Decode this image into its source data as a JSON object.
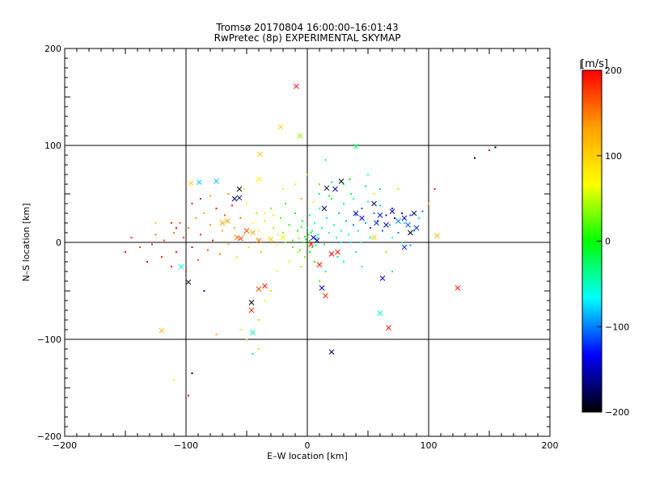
{
  "chart_data": {
    "type": "scatter",
    "title": "Tromsø 20170804 16:00:00–16:01:43",
    "subtitle": "RwPretec (8p) EXPERIMENTAL SKYMAP",
    "xlabel": "E–W location [km]",
    "ylabel": "N–S location [km]",
    "xlim": [
      -200,
      200
    ],
    "ylim": [
      -200,
      200
    ],
    "xticks": [
      -200,
      -100,
      0,
      100,
      200
    ],
    "yticks": [
      -200,
      -100,
      0,
      100,
      200
    ],
    "xtick_labels": [
      "−200",
      "−100",
      "0",
      "100",
      "200"
    ],
    "ytick_labels": [
      "−200",
      "−100",
      "0",
      "100",
      "200"
    ],
    "grid": true,
    "color_scale": "rainbow",
    "colorbar": {
      "label": "[m/s]",
      "range": [
        -200,
        200
      ],
      "ticks": [
        200,
        100,
        0,
        -100,
        -200
      ],
      "tick_labels": [
        "200",
        "100",
        "0",
        "−100",
        "−200"
      ],
      "stops": [
        "#ff0000",
        "#ffa000",
        "#ffff00",
        "#00ff00",
        "#00ffff",
        "#0000ff",
        "#000000"
      ]
    },
    "markers": [
      {
        "x": -9,
        "y": 161,
        "v": 200
      },
      {
        "x": -22,
        "y": 119,
        "v": 100
      },
      {
        "x": -6,
        "y": 110,
        "v": 40
      },
      {
        "x": -39,
        "y": 91,
        "v": 110
      },
      {
        "x": -96,
        "y": 61,
        "v": 100
      },
      {
        "x": -40,
        "y": 65,
        "v": 70
      },
      {
        "x": -89,
        "y": 62,
        "v": -80
      },
      {
        "x": -75,
        "y": 63,
        "v": -80
      },
      {
        "x": -60,
        "y": 45,
        "v": -170
      },
      {
        "x": -56,
        "y": 46,
        "v": -170
      },
      {
        "x": -56,
        "y": 55,
        "v": -200
      },
      {
        "x": -70,
        "y": 20,
        "v": 130
      },
      {
        "x": -66,
        "y": 22,
        "v": 130
      },
      {
        "x": -45,
        "y": 10,
        "v": 120
      },
      {
        "x": -40,
        "y": 2,
        "v": 150
      },
      {
        "x": -58,
        "y": 5,
        "v": 150
      },
      {
        "x": -55,
        "y": 4,
        "v": 180
      },
      {
        "x": -50,
        "y": 12,
        "v": 170
      },
      {
        "x": -30,
        "y": 3,
        "v": 100
      },
      {
        "x": -20,
        "y": 5,
        "v": 60
      },
      {
        "x": -104,
        "y": -25,
        "v": -60
      },
      {
        "x": -98,
        "y": -41,
        "v": -200
      },
      {
        "x": -46,
        "y": -62,
        "v": -200
      },
      {
        "x": -46,
        "y": -70,
        "v": 180
      },
      {
        "x": -40,
        "y": -48,
        "v": 170
      },
      {
        "x": -35,
        "y": -45,
        "v": 190
      },
      {
        "x": -45,
        "y": -93,
        "v": -50
      },
      {
        "x": -120,
        "y": -91,
        "v": 120
      },
      {
        "x": 10,
        "y": -23,
        "v": 190
      },
      {
        "x": 12,
        "y": -47,
        "v": -160
      },
      {
        "x": 15,
        "y": -55,
        "v": 180
      },
      {
        "x": 20,
        "y": -113,
        "v": -170
      },
      {
        "x": 20,
        "y": -12,
        "v": 200
      },
      {
        "x": 25,
        "y": -10,
        "v": 190
      },
      {
        "x": 3,
        "y": -2,
        "v": 200
      },
      {
        "x": 5,
        "y": 5,
        "v": -150
      },
      {
        "x": 8,
        "y": 2,
        "v": -160
      },
      {
        "x": 14,
        "y": 35,
        "v": -170
      },
      {
        "x": 16,
        "y": 56,
        "v": -190
      },
      {
        "x": 28,
        "y": 63,
        "v": -200
      },
      {
        "x": 23,
        "y": 55,
        "v": -160
      },
      {
        "x": 40,
        "y": 99,
        "v": -30
      },
      {
        "x": 40,
        "y": 30,
        "v": -150
      },
      {
        "x": 45,
        "y": 25,
        "v": -140
      },
      {
        "x": 55,
        "y": 40,
        "v": -170
      },
      {
        "x": 57,
        "y": 20,
        "v": -120
      },
      {
        "x": 60,
        "y": 28,
        "v": -130
      },
      {
        "x": 65,
        "y": 18,
        "v": -150
      },
      {
        "x": 70,
        "y": 32,
        "v": -160
      },
      {
        "x": 75,
        "y": 22,
        "v": -100
      },
      {
        "x": 80,
        "y": 25,
        "v": -140
      },
      {
        "x": 83,
        "y": 18,
        "v": -110
      },
      {
        "x": 88,
        "y": 30,
        "v": -170
      },
      {
        "x": 85,
        "y": 10,
        "v": -190
      },
      {
        "x": 90,
        "y": 15,
        "v": -120
      },
      {
        "x": 55,
        "y": 5,
        "v": 100
      },
      {
        "x": 62,
        "y": -37,
        "v": -140
      },
      {
        "x": 60,
        "y": -73,
        "v": -60
      },
      {
        "x": 67,
        "y": -88,
        "v": 190
      },
      {
        "x": 107,
        "y": 7,
        "v": 110
      },
      {
        "x": 124,
        "y": -47,
        "v": 190
      },
      {
        "x": 80,
        "y": -5,
        "v": -120
      }
    ],
    "points": [
      {
        "x": -150,
        "y": -10,
        "v": 200
      },
      {
        "x": -145,
        "y": 5,
        "v": 180
      },
      {
        "x": -138,
        "y": -5,
        "v": 170
      },
      {
        "x": -132,
        "y": -20,
        "v": 200
      },
      {
        "x": -128,
        "y": -2,
        "v": 190
      },
      {
        "x": -125,
        "y": 8,
        "v": 160
      },
      {
        "x": -120,
        "y": -15,
        "v": 180
      },
      {
        "x": -118,
        "y": 2,
        "v": 170
      },
      {
        "x": -112,
        "y": -25,
        "v": 200
      },
      {
        "x": -110,
        "y": 10,
        "v": 150
      },
      {
        "x": -108,
        "y": -10,
        "v": 190
      },
      {
        "x": -105,
        "y": 20,
        "v": 160
      },
      {
        "x": -102,
        "y": 5,
        "v": 170
      },
      {
        "x": -100,
        "y": -30,
        "v": 180
      },
      {
        "x": -98,
        "y": 15,
        "v": 140
      },
      {
        "x": -95,
        "y": -5,
        "v": 200
      },
      {
        "x": -92,
        "y": 25,
        "v": 130
      },
      {
        "x": -90,
        "y": -18,
        "v": 170
      },
      {
        "x": -88,
        "y": 8,
        "v": 180
      },
      {
        "x": -85,
        "y": 30,
        "v": 120
      },
      {
        "x": -82,
        "y": -8,
        "v": 160
      },
      {
        "x": -80,
        "y": 18,
        "v": 140
      },
      {
        "x": -78,
        "y": 2,
        "v": 190
      },
      {
        "x": -75,
        "y": 35,
        "v": 200
      },
      {
        "x": -72,
        "y": -12,
        "v": 150
      },
      {
        "x": -70,
        "y": 12,
        "v": 130
      },
      {
        "x": -68,
        "y": 28,
        "v": 170
      },
      {
        "x": -65,
        "y": -2,
        "v": 110
      },
      {
        "x": -62,
        "y": 38,
        "v": 190
      },
      {
        "x": -60,
        "y": 15,
        "v": 120
      },
      {
        "x": -58,
        "y": -15,
        "v": 80
      },
      {
        "x": -55,
        "y": 25,
        "v": 150
      },
      {
        "x": -52,
        "y": 8,
        "v": 100
      },
      {
        "x": -50,
        "y": 40,
        "v": 60
      },
      {
        "x": -48,
        "y": -5,
        "v": 90
      },
      {
        "x": -45,
        "y": 20,
        "v": 70
      },
      {
        "x": -42,
        "y": 30,
        "v": 40
      },
      {
        "x": -40,
        "y": 12,
        "v": 80
      },
      {
        "x": -38,
        "y": -10,
        "v": 110
      },
      {
        "x": -35,
        "y": 22,
        "v": 50
      },
      {
        "x": -32,
        "y": 5,
        "v": 60
      },
      {
        "x": -30,
        "y": 35,
        "v": 30
      },
      {
        "x": -28,
        "y": 15,
        "v": 40
      },
      {
        "x": -25,
        "y": -3,
        "v": 70
      },
      {
        "x": -22,
        "y": 25,
        "v": 20
      },
      {
        "x": -20,
        "y": 10,
        "v": 30
      },
      {
        "x": -18,
        "y": 40,
        "v": 10
      },
      {
        "x": -15,
        "y": 18,
        "v": 0
      },
      {
        "x": -12,
        "y": 2,
        "v": 20
      },
      {
        "x": -10,
        "y": 30,
        "v": -10
      },
      {
        "x": -8,
        "y": 12,
        "v": 0
      },
      {
        "x": -6,
        "y": -8,
        "v": 10
      },
      {
        "x": -4,
        "y": 22,
        "v": -20
      },
      {
        "x": -2,
        "y": 6,
        "v": -10
      },
      {
        "x": 0,
        "y": 15,
        "v": -30
      },
      {
        "x": 0,
        "y": -2,
        "v": 0
      },
      {
        "x": 2,
        "y": 28,
        "v": -40
      },
      {
        "x": 3,
        "y": 10,
        "v": -20
      },
      {
        "x": 4,
        "y": -5,
        "v": 10
      },
      {
        "x": 6,
        "y": 20,
        "v": -50
      },
      {
        "x": 8,
        "y": 5,
        "v": -30
      },
      {
        "x": 10,
        "y": 35,
        "v": -60
      },
      {
        "x": 12,
        "y": 15,
        "v": -40
      },
      {
        "x": 14,
        "y": -2,
        "v": -20
      },
      {
        "x": 16,
        "y": 25,
        "v": -70
      },
      {
        "x": 18,
        "y": 10,
        "v": -50
      },
      {
        "x": 20,
        "y": 45,
        "v": -10
      },
      {
        "x": 22,
        "y": 18,
        "v": -60
      },
      {
        "x": 24,
        "y": 5,
        "v": -40
      },
      {
        "x": 26,
        "y": 30,
        "v": -80
      },
      {
        "x": 28,
        "y": 12,
        "v": -70
      },
      {
        "x": 30,
        "y": 40,
        "v": -30
      },
      {
        "x": 32,
        "y": 22,
        "v": -90
      },
      {
        "x": 34,
        "y": 8,
        "v": -60
      },
      {
        "x": 36,
        "y": 50,
        "v": -20
      },
      {
        "x": 38,
        "y": 18,
        "v": -100
      },
      {
        "x": 40,
        "y": 28,
        "v": -80
      },
      {
        "x": 42,
        "y": 12,
        "v": -70
      },
      {
        "x": 45,
        "y": 35,
        "v": -110
      },
      {
        "x": 48,
        "y": 20,
        "v": -90
      },
      {
        "x": 50,
        "y": 42,
        "v": -60
      },
      {
        "x": 52,
        "y": 15,
        "v": -120
      },
      {
        "x": 55,
        "y": 30,
        "v": -100
      },
      {
        "x": 58,
        "y": 22,
        "v": -130
      },
      {
        "x": 60,
        "y": 38,
        "v": -80
      },
      {
        "x": 62,
        "y": 12,
        "v": -110
      },
      {
        "x": 65,
        "y": 28,
        "v": -140
      },
      {
        "x": 68,
        "y": 18,
        "v": -90
      },
      {
        "x": 70,
        "y": 35,
        "v": -120
      },
      {
        "x": 72,
        "y": 25,
        "v": -150
      },
      {
        "x": 75,
        "y": 10,
        "v": -100
      },
      {
        "x": 78,
        "y": 30,
        "v": -130
      },
      {
        "x": 80,
        "y": 20,
        "v": -60
      },
      {
        "x": 85,
        "y": 28,
        "v": -110
      },
      {
        "x": 88,
        "y": 12,
        "v": -90
      },
      {
        "x": 92,
        "y": 25,
        "v": -50
      },
      {
        "x": 95,
        "y": 32,
        "v": -100
      },
      {
        "x": 20,
        "y": 62,
        "v": -40
      },
      {
        "x": 30,
        "y": 60,
        "v": -20
      },
      {
        "x": 48,
        "y": 58,
        "v": -30
      },
      {
        "x": 35,
        "y": 65,
        "v": 0
      },
      {
        "x": 25,
        "y": -15,
        "v": -30
      },
      {
        "x": 30,
        "y": -20,
        "v": -40
      },
      {
        "x": 15,
        "y": -30,
        "v": -50
      },
      {
        "x": 40,
        "y": -10,
        "v": -60
      },
      {
        "x": 45,
        "y": -25,
        "v": -40
      },
      {
        "x": 10,
        "y": -40,
        "v": 20
      },
      {
        "x": -5,
        "y": -25,
        "v": 40
      },
      {
        "x": -15,
        "y": -20,
        "v": 60
      },
      {
        "x": -25,
        "y": -30,
        "v": 80
      },
      {
        "x": -30,
        "y": -50,
        "v": 100
      },
      {
        "x": -35,
        "y": -60,
        "v": 60
      },
      {
        "x": -40,
        "y": -80,
        "v": 40
      },
      {
        "x": -50,
        "y": -100,
        "v": 80
      },
      {
        "x": -55,
        "y": -90,
        "v": 60
      },
      {
        "x": -75,
        "y": -95,
        "v": 120
      },
      {
        "x": -110,
        "y": -142,
        "v": 60
      },
      {
        "x": -95,
        "y": -135,
        "v": -200
      },
      {
        "x": -98,
        "y": -158,
        "v": 200
      },
      {
        "x": -85,
        "y": -50,
        "v": -150
      },
      {
        "x": -45,
        "y": -115,
        "v": -20
      },
      {
        "x": -40,
        "y": -110,
        "v": 40
      },
      {
        "x": 10,
        "y": 60,
        "v": 20
      },
      {
        "x": 0,
        "y": 70,
        "v": 40
      },
      {
        "x": -10,
        "y": 60,
        "v": 60
      },
      {
        "x": -20,
        "y": 55,
        "v": 80
      },
      {
        "x": 15,
        "y": 85,
        "v": -30
      },
      {
        "x": 50,
        "y": 70,
        "v": -60
      },
      {
        "x": 55,
        "y": 50,
        "v": 60
      },
      {
        "x": 60,
        "y": 55,
        "v": -20
      },
      {
        "x": 75,
        "y": 55,
        "v": 40
      },
      {
        "x": 65,
        "y": -10,
        "v": 30
      },
      {
        "x": 70,
        "y": -30,
        "v": -80
      },
      {
        "x": 100,
        "y": 40,
        "v": 120
      },
      {
        "x": 105,
        "y": 55,
        "v": 190
      },
      {
        "x": 138,
        "y": 87,
        "v": -200
      },
      {
        "x": 150,
        "y": 95,
        "v": 200
      },
      {
        "x": 155,
        "y": 98,
        "v": -200
      },
      {
        "x": -108,
        "y": 15,
        "v": 200
      },
      {
        "x": -112,
        "y": 20,
        "v": 180
      },
      {
        "x": -125,
        "y": 20,
        "v": 100
      },
      {
        "x": -95,
        "y": 40,
        "v": 190
      },
      {
        "x": -88,
        "y": 45,
        "v": 190
      },
      {
        "x": -80,
        "y": 48,
        "v": 130
      },
      {
        "x": -65,
        "y": 50,
        "v": 140
      },
      {
        "x": -52,
        "y": 55,
        "v": 80
      },
      {
        "x": -5,
        "y": 45,
        "v": 130
      },
      {
        "x": 5,
        "y": 42,
        "v": 80
      },
      {
        "x": 10,
        "y": 50,
        "v": -30
      },
      {
        "x": 18,
        "y": 48,
        "v": -10
      },
      {
        "x": 38,
        "y": 45,
        "v": -40
      },
      {
        "x": -2,
        "y": -15,
        "v": 30
      },
      {
        "x": 2,
        "y": -10,
        "v": -10
      },
      {
        "x": 6,
        "y": -20,
        "v": 10
      },
      {
        "x": -8,
        "y": -10,
        "v": 50
      },
      {
        "x": -12,
        "y": -5,
        "v": 20
      },
      {
        "x": -18,
        "y": 0,
        "v": 40
      },
      {
        "x": -24,
        "y": 8,
        "v": 60
      },
      {
        "x": -28,
        "y": 28,
        "v": 60
      },
      {
        "x": -35,
        "y": 30,
        "v": 80
      },
      {
        "x": 28,
        "y": 0,
        "v": -70
      },
      {
        "x": 36,
        "y": 0,
        "v": -80
      },
      {
        "x": 44,
        "y": 0,
        "v": -50
      },
      {
        "x": 52,
        "y": 5,
        "v": -40
      },
      {
        "x": 70,
        "y": 5,
        "v": -70
      },
      {
        "x": 78,
        "y": 0,
        "v": -30
      },
      {
        "x": 85,
        "y": -3,
        "v": -100
      },
      {
        "x": -1,
        "y": 3,
        "v": 0
      },
      {
        "x": 1,
        "y": 8,
        "v": 10
      },
      {
        "x": -3,
        "y": 0,
        "v": 20
      },
      {
        "x": 2,
        "y": 2,
        "v": -10
      },
      {
        "x": 4,
        "y": 12,
        "v": -20
      },
      {
        "x": -5,
        "y": 16,
        "v": 10
      },
      {
        "x": 7,
        "y": -3,
        "v": -30
      },
      {
        "x": 9,
        "y": 8,
        "v": -40
      },
      {
        "x": -7,
        "y": 4,
        "v": 30
      }
    ]
  }
}
